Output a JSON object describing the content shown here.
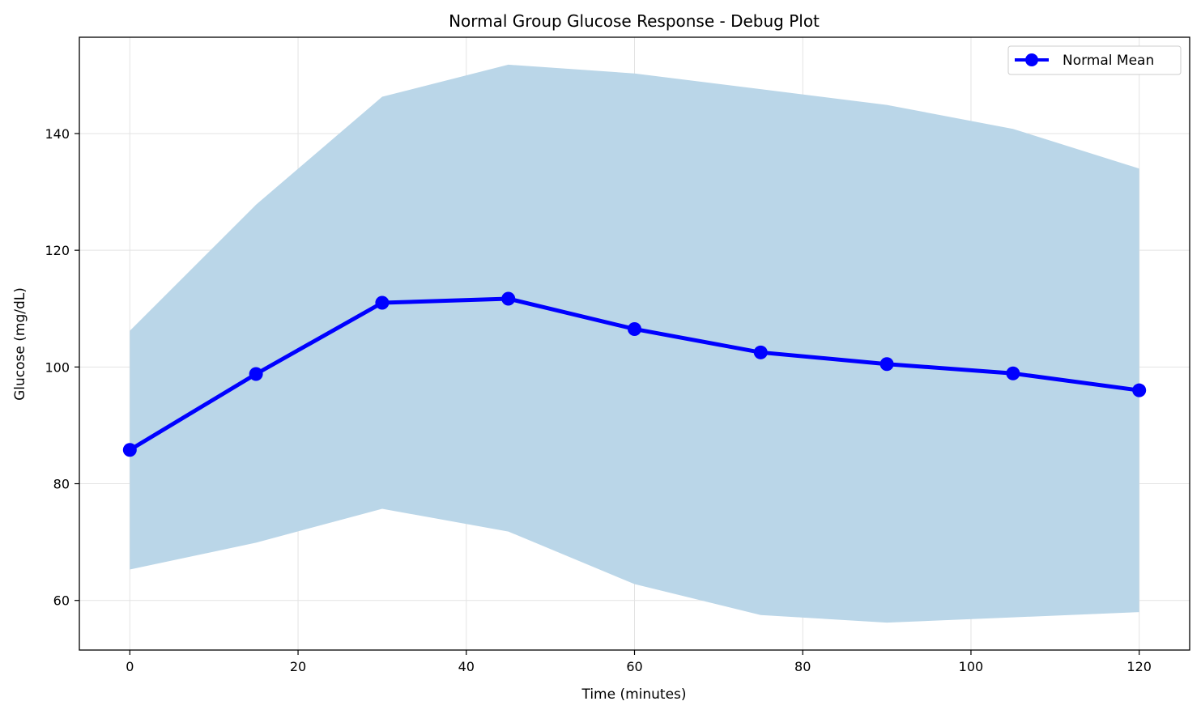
{
  "chart_data": {
    "type": "line",
    "title": "Normal Group Glucose Response - Debug Plot",
    "xlabel": "Time (minutes)",
    "ylabel": "Glucose (mg/dL)",
    "xlim": [
      -6,
      126
    ],
    "ylim": [
      51.5,
      156.5
    ],
    "xticks": [
      0,
      20,
      40,
      60,
      80,
      100,
      120
    ],
    "yticks": [
      60,
      80,
      100,
      120,
      140
    ],
    "grid": true,
    "legend_position": "top-right",
    "x": [
      0,
      15,
      30,
      45,
      60,
      75,
      90,
      105,
      120
    ],
    "series": [
      {
        "name": "Normal Mean",
        "color": "#0000ff",
        "marker": "circle",
        "values": [
          85.8,
          98.8,
          111.0,
          111.7,
          106.5,
          102.5,
          100.5,
          98.9,
          96.0
        ]
      }
    ],
    "band": {
      "color": "#bad6e8",
      "upper": [
        106.2,
        127.8,
        146.3,
        151.8,
        150.3,
        147.6,
        144.9,
        140.8,
        134.0
      ],
      "lower": [
        65.3,
        69.9,
        75.7,
        71.8,
        62.8,
        57.5,
        56.2,
        57.1,
        58.0
      ]
    }
  }
}
